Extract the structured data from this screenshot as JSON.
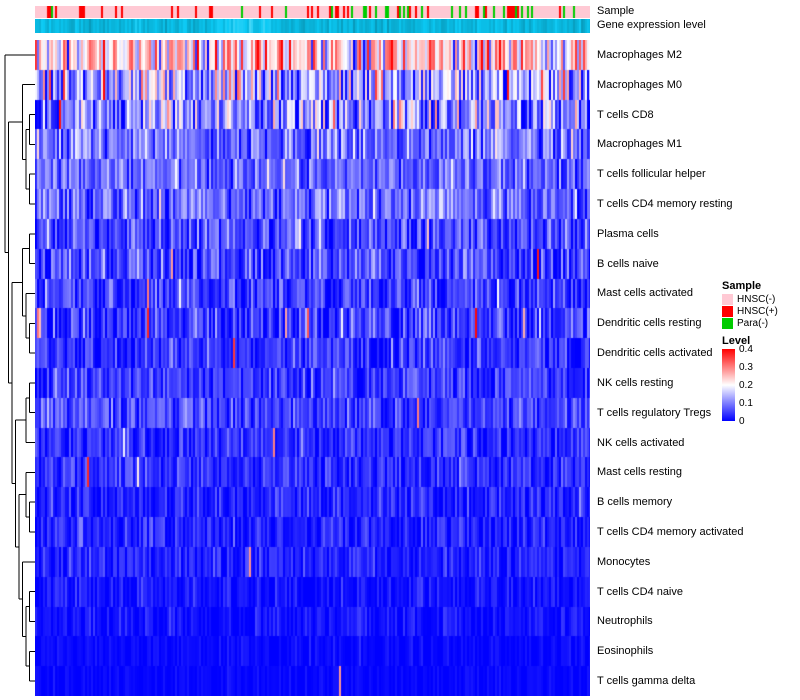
{
  "annotations": {
    "sample_label": "Sample",
    "expression_label": "Gene expression level"
  },
  "chart_data": {
    "type": "heatmap",
    "title": "",
    "xlabel": "",
    "ylabel": "",
    "columns_approx": 500,
    "value_range": [
      0,
      0.4
    ],
    "color_scale": {
      "low": "#0000FF",
      "mid": "#FFFFFF",
      "high": "#FF0000",
      "mid_value": 0.2
    },
    "rows": [
      {
        "name": "Macrophages M2",
        "mean_level": 0.23,
        "variability": 0.09,
        "spike_prob": 0.01
      },
      {
        "name": "Macrophages M0",
        "mean_level": 0.13,
        "variability": 0.1,
        "spike_prob": 0.012
      },
      {
        "name": "T cells CD8",
        "mean_level": 0.11,
        "variability": 0.08,
        "spike_prob": 0.01
      },
      {
        "name": "Macrophages M1",
        "mean_level": 0.09,
        "variability": 0.05,
        "spike_prob": 0.008
      },
      {
        "name": "T cells follicular helper",
        "mean_level": 0.08,
        "variability": 0.04,
        "spike_prob": 0.005
      },
      {
        "name": "T cells CD4 memory resting",
        "mean_level": 0.085,
        "variability": 0.05,
        "spike_prob": 0.005
      },
      {
        "name": "Plasma cells",
        "mean_level": 0.06,
        "variability": 0.045,
        "spike_prob": 0.008
      },
      {
        "name": "B cells naive",
        "mean_level": 0.055,
        "variability": 0.045,
        "spike_prob": 0.008
      },
      {
        "name": "Mast cells activated",
        "mean_level": 0.045,
        "variability": 0.04,
        "spike_prob": 0.012
      },
      {
        "name": "Dendritic cells resting",
        "mean_level": 0.045,
        "variability": 0.04,
        "spike_prob": 0.014
      },
      {
        "name": "Dendritic cells activated",
        "mean_level": 0.04,
        "variability": 0.035,
        "spike_prob": 0.008
      },
      {
        "name": "NK cells resting",
        "mean_level": 0.045,
        "variability": 0.035,
        "spike_prob": 0.005
      },
      {
        "name": "T cells regulatory  Tregs",
        "mean_level": 0.055,
        "variability": 0.035,
        "spike_prob": 0.004
      },
      {
        "name": "NK cells activated",
        "mean_level": 0.035,
        "variability": 0.03,
        "spike_prob": 0.004
      },
      {
        "name": "Mast cells resting",
        "mean_level": 0.035,
        "variability": 0.03,
        "spike_prob": 0.006
      },
      {
        "name": "B cells memory",
        "mean_level": 0.025,
        "variability": 0.028,
        "spike_prob": 0.006
      },
      {
        "name": "T cells CD4 memory activated",
        "mean_level": 0.025,
        "variability": 0.028,
        "spike_prob": 0.004
      },
      {
        "name": "Monocytes",
        "mean_level": 0.025,
        "variability": 0.025,
        "spike_prob": 0.004
      },
      {
        "name": "T cells CD4 naive",
        "mean_level": 0.015,
        "variability": 0.02,
        "spike_prob": 0.003
      },
      {
        "name": "Neutrophils",
        "mean_level": 0.012,
        "variability": 0.018,
        "spike_prob": 0.003
      },
      {
        "name": "Eosinophils",
        "mean_level": 0.006,
        "variability": 0.012,
        "spike_prob": 0.002
      },
      {
        "name": "T cells gamma delta",
        "mean_level": 0.004,
        "variability": 0.008,
        "spike_prob": 0.002
      }
    ],
    "sample_annotation": {
      "classes": [
        {
          "label": "HNSC(-)",
          "color": "#FFC9D4"
        },
        {
          "label": "HNSC(+)",
          "color": "#FF0000"
        },
        {
          "label": "Para(-)",
          "color": "#00CC00"
        }
      ]
    },
    "expression_annotation": {
      "color": "#00BFDF"
    },
    "legend": {
      "position": "right",
      "sample_title": "Sample",
      "level_title": "Level",
      "level_ticks": [
        "0.4",
        "0.3",
        "0.2",
        "0.1",
        "0"
      ]
    }
  }
}
